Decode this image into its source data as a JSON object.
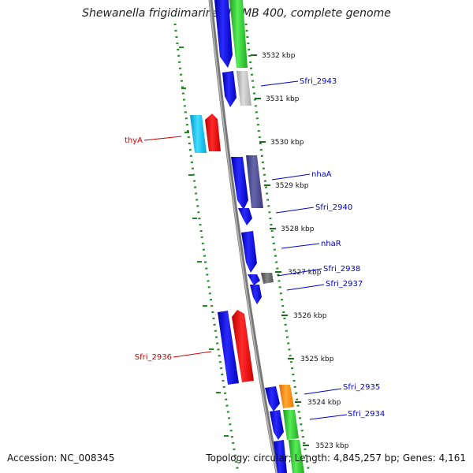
{
  "title": "Shewanella frigidimarina NCIMB 400, complete genome",
  "footer": {
    "accession": "Accession: NC_008345",
    "topology": "Topology: circular; Length: 4,845,257 bp; Genes: 4,161"
  },
  "ruler": [
    {
      "label": "3532 kbp"
    },
    {
      "label": "3531 kbp"
    },
    {
      "label": "3530 kbp"
    },
    {
      "label": "3529 kbp"
    },
    {
      "label": "3528 kbp"
    },
    {
      "label": "3527 kbp"
    },
    {
      "label": "3526 kbp"
    },
    {
      "label": "3525 kbp"
    },
    {
      "label": "3524 kbp"
    },
    {
      "label": "3523 kbp"
    }
  ],
  "gene_labels": [
    {
      "label": "Sfri_2943",
      "color": "#0000cc"
    },
    {
      "label": "thyA",
      "color": "#cc0000"
    },
    {
      "label": "nhaA",
      "color": "#0000cc"
    },
    {
      "label": "Sfri_2940",
      "color": "#0000cc"
    },
    {
      "label": "nhaR",
      "color": "#0000cc"
    },
    {
      "label": "Sfri_2938",
      "color": "#0000cc"
    },
    {
      "label": "Sfri_2937",
      "color": "#0000cc"
    },
    {
      "label": "Sfri_2936",
      "color": "#cc0000"
    },
    {
      "label": "Sfri_2935",
      "color": "#0000cc"
    },
    {
      "label": "Sfri_2934",
      "color": "#0000cc"
    }
  ],
  "colors": {
    "cds": "#0000ee",
    "rna": "#ee0000",
    "gray": "#bbbbbb",
    "green": "#33cc33",
    "orange": "#ff8800",
    "cyan": "#11bbee",
    "purple": "#4b4b9b",
    "backbone": "#777777",
    "dots": "#228822"
  }
}
